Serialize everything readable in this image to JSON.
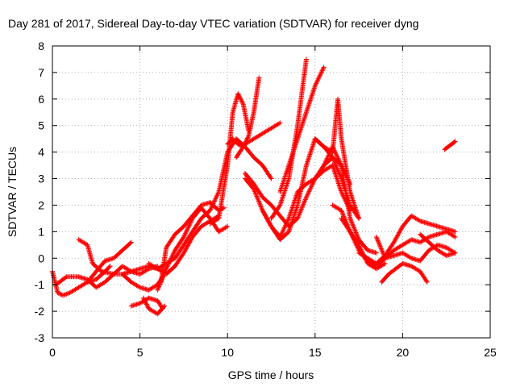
{
  "chart_data": {
    "type": "scatter",
    "title": "Day 281 of 2017, Sidereal Day-to-day VTEC variation (SDTVAR) for receiver dyng",
    "xlabel": "GPS time / hours",
    "ylabel": "SDTVAR / TECUs",
    "xlim": [
      0,
      25
    ],
    "ylim": [
      -3,
      8
    ],
    "xticks": [
      "0",
      "5",
      "10",
      "15",
      "20",
      "25"
    ],
    "yticks": [
      "-3",
      "-2",
      "-1",
      "0",
      "1",
      "2",
      "3",
      "4",
      "5",
      "6",
      "7",
      "8"
    ],
    "grid": true,
    "marker": "+",
    "color": "#ff0000",
    "tracks": [
      {
        "x": [
          0.0,
          0.3,
          0.6,
          1.0,
          1.5,
          2.0,
          2.5,
          3.0,
          3.3
        ],
        "y": [
          -0.5,
          -1.3,
          -1.4,
          -1.3,
          -1.1,
          -0.9,
          -0.8,
          -0.5,
          -0.3
        ]
      },
      {
        "x": [
          0.2,
          0.8,
          1.5,
          2.0,
          2.5,
          3.0,
          3.5,
          4.0,
          4.5,
          5.0,
          5.5,
          6.0
        ],
        "y": [
          -1.0,
          -0.7,
          -0.7,
          -0.8,
          -1.1,
          -0.9,
          -0.6,
          -0.3,
          -0.5,
          -0.6,
          -0.4,
          -0.3
        ]
      },
      {
        "x": [
          1.5,
          2.0,
          2.3,
          2.8,
          3.5,
          4.0,
          4.5,
          5.0,
          5.5,
          6.0,
          6.5,
          7.0
        ],
        "y": [
          0.7,
          0.5,
          -0.2,
          -0.5,
          -0.6,
          -0.6,
          -0.5,
          -0.4,
          -0.3,
          -0.4,
          -0.2,
          0.0
        ]
      },
      {
        "x": [
          2.0,
          2.5,
          3.0,
          3.5,
          4.0,
          4.5
        ],
        "y": [
          -0.9,
          -0.5,
          -0.1,
          0.0,
          0.3,
          0.6
        ]
      },
      {
        "x": [
          4.0,
          4.5,
          5.0,
          5.5,
          6.0,
          6.3
        ],
        "y": [
          -0.6,
          -0.9,
          -1.1,
          -1.2,
          -1.0,
          -0.7
        ]
      },
      {
        "x": [
          4.5,
          5.0,
          5.5,
          6.0,
          6.3
        ],
        "y": [
          -1.8,
          -1.7,
          -1.5,
          -1.6,
          -1.9
        ]
      },
      {
        "x": [
          5.2,
          5.5,
          6.0,
          6.4
        ],
        "y": [
          -1.5,
          -1.9,
          -2.1,
          -1.8
        ]
      },
      {
        "x": [
          5.5,
          6.0,
          6.5,
          7.0,
          7.5,
          8.0,
          8.5,
          9.0,
          9.5
        ],
        "y": [
          -0.2,
          -0.4,
          -0.6,
          -0.3,
          0.2,
          0.8,
          1.2,
          1.4,
          1.6
        ]
      },
      {
        "x": [
          6.0,
          6.5,
          7.0,
          7.5,
          8.0,
          8.5,
          9.0,
          9.5,
          10.0
        ],
        "y": [
          -1.2,
          -0.4,
          0.3,
          0.8,
          1.5,
          1.9,
          1.5,
          1.0,
          1.2
        ]
      },
      {
        "x": [
          6.2,
          6.5,
          7.0,
          7.5,
          8.0,
          8.5,
          9.0,
          9.5,
          9.8
        ],
        "y": [
          -0.9,
          0.4,
          0.9,
          1.2,
          1.6,
          2.0,
          2.1,
          1.8,
          1.9
        ]
      },
      {
        "x": [
          7.0,
          7.5,
          8.0,
          8.5,
          9.0,
          9.5,
          10.0,
          10.5,
          11.0,
          11.5,
          12.0,
          12.5
        ],
        "y": [
          0.0,
          0.5,
          1.0,
          1.5,
          1.8,
          2.5,
          4.0,
          4.5,
          4.2,
          3.8,
          3.5,
          3.0
        ]
      },
      {
        "x": [
          9.0,
          9.5,
          10.0,
          10.3,
          10.6,
          10.9,
          11.2
        ],
        "y": [
          1.3,
          1.5,
          3.5,
          5.5,
          6.2,
          5.8,
          4.8
        ]
      },
      {
        "x": [
          10.0,
          10.3,
          10.6,
          10.9,
          11.2,
          11.5,
          11.8
        ],
        "y": [
          4.3,
          4.5,
          4.3,
          4.2,
          4.6,
          5.5,
          6.8
        ]
      },
      {
        "x": [
          10.5,
          11.0,
          11.5,
          12.0,
          12.5,
          13.0
        ],
        "y": [
          3.8,
          4.3,
          4.5,
          4.7,
          4.9,
          5.1
        ]
      },
      {
        "x": [
          11.0,
          11.5,
          12.0,
          12.5,
          13.0,
          13.5,
          14.0,
          14.5,
          15.0,
          15.5,
          16.0,
          16.5,
          17.0
        ],
        "y": [
          3.2,
          2.8,
          2.3,
          2.0,
          1.6,
          1.2,
          1.5,
          2.3,
          3.0,
          3.5,
          3.8,
          3.5,
          2.8
        ]
      },
      {
        "x": [
          11.0,
          11.5,
          12.0,
          12.5,
          13.0,
          13.5,
          14.0,
          14.5,
          15.0,
          15.5,
          16.0,
          16.5,
          17.0
        ],
        "y": [
          3.0,
          2.6,
          1.8,
          1.2,
          0.8,
          1.5,
          2.5,
          2.8,
          3.0,
          3.3,
          3.5,
          2.5,
          1.8
        ]
      },
      {
        "x": [
          12.0,
          12.5,
          13.0,
          13.5,
          14.0,
          14.5,
          15.0,
          15.5,
          16.0,
          16.5,
          17.0,
          17.5
        ],
        "y": [
          1.8,
          1.2,
          0.7,
          1.0,
          2.0,
          3.5,
          4.5,
          4.2,
          3.8,
          3.0,
          2.0,
          1.5
        ]
      },
      {
        "x": [
          12.5,
          13.0,
          13.5,
          14.0,
          14.5
        ],
        "y": [
          1.5,
          2.0,
          3.0,
          5.0,
          7.5
        ]
      },
      {
        "x": [
          13.0,
          13.5,
          14.0,
          14.5,
          15.0,
          15.5
        ],
        "y": [
          2.5,
          3.5,
          4.5,
          5.5,
          6.5,
          7.2
        ]
      },
      {
        "x": [
          15.0,
          15.5,
          16.0,
          16.3,
          16.5,
          17.0,
          17.5
        ],
        "y": [
          4.5,
          4.2,
          4.0,
          6.0,
          4.5,
          2.5,
          1.5
        ]
      },
      {
        "x": [
          15.5,
          16.0,
          16.5,
          17.0,
          17.5,
          18.0,
          18.5
        ],
        "y": [
          3.5,
          4.2,
          3.5,
          1.5,
          0.7,
          0.3,
          0.2
        ]
      },
      {
        "x": [
          16.0,
          16.5,
          17.0,
          17.5,
          18.0,
          18.5,
          19.0
        ],
        "y": [
          2.0,
          1.8,
          1.0,
          0.5,
          -0.2,
          -0.4,
          -0.2
        ]
      },
      {
        "x": [
          16.5,
          17.0,
          17.5,
          18.0,
          18.5,
          19.0,
          19.5,
          20.0,
          20.5,
          21.0,
          21.5,
          22.0,
          22.5,
          23.0
        ],
        "y": [
          1.5,
          1.0,
          0.3,
          -0.1,
          -0.3,
          0.0,
          0.3,
          0.5,
          0.7,
          0.6,
          0.8,
          0.9,
          1.0,
          0.8
        ]
      },
      {
        "x": [
          17.5,
          18.0,
          18.5,
          19.0,
          19.5,
          20.0,
          20.5,
          21.0,
          21.5,
          22.0,
          22.5,
          23.0
        ],
        "y": [
          0.2,
          0.0,
          -0.2,
          0.1,
          0.6,
          1.2,
          1.6,
          1.4,
          1.3,
          1.2,
          1.1,
          1.0
        ]
      },
      {
        "x": [
          18.5,
          19.0,
          19.5,
          20.0,
          20.5,
          21.0,
          21.5,
          22.0,
          22.5,
          23.0
        ],
        "y": [
          0.8,
          0.0,
          0.1,
          0.2,
          0.0,
          -0.1,
          0.3,
          0.5,
          0.4,
          0.2
        ]
      },
      {
        "x": [
          18.8,
          19.2,
          19.6,
          20.0,
          20.5,
          21.0,
          21.4
        ],
        "y": [
          -0.9,
          -0.6,
          -0.4,
          -0.2,
          -0.3,
          -0.5,
          -0.9
        ]
      },
      {
        "x": [
          21.0,
          21.5,
          22.0,
          22.5,
          23.0
        ],
        "y": [
          0.9,
          0.6,
          0.3,
          0.1,
          0.2
        ]
      },
      {
        "x": [
          22.4,
          22.6,
          22.8,
          23.0
        ],
        "y": [
          4.1,
          4.2,
          4.3,
          4.4
        ]
      }
    ]
  }
}
